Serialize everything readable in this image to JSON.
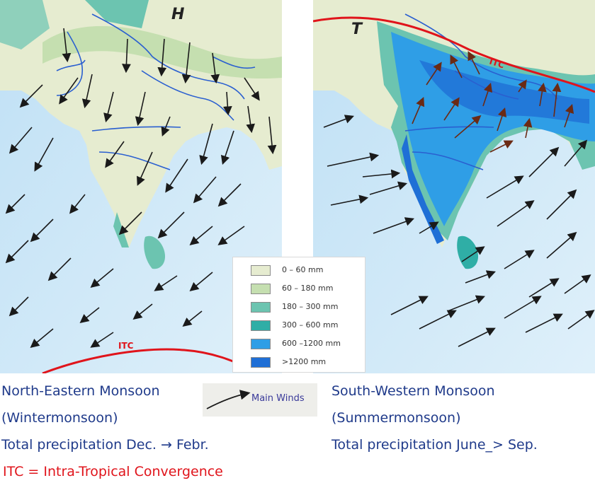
{
  "maps": {
    "winter": {
      "pressure_label": "H",
      "itc_label": "ITC"
    },
    "summer": {
      "pressure_label": "T",
      "itc_label": "ITC"
    }
  },
  "legend": {
    "title": "",
    "classes": [
      {
        "label": "0 –   60 mm",
        "color": "#e6ecd0"
      },
      {
        "label": "60 – 180 mm",
        "color": "#c5dfb0"
      },
      {
        "label": "180 – 300 mm",
        "color": "#6cc4b0"
      },
      {
        "label": "300 – 600 mm",
        "color": "#2faea6"
      },
      {
        "label": "600 –1200 mm",
        "color": "#2f9ee6"
      },
      {
        "label": ">1200 mm",
        "color": "#1f6fd6"
      }
    ]
  },
  "key": {
    "label": "Main Winds"
  },
  "captions": {
    "winter": {
      "line1": "North-Eastern Monsoon",
      "line2": "(Wintermonsoon)",
      "line3": "Total precipitation Dec. → Febr."
    },
    "summer": {
      "line1": "South-Western Monsoon",
      "line2": "(Summermonsoon)",
      "line3": "Total precipitation June_> Sep."
    },
    "itc_definition": "ITC = Intra-Tropical Convergence"
  },
  "colors": {
    "sea": "#cfe6f5",
    "land_dry": "#e6ecd0",
    "caption_text": "#1f3a8a",
    "itc_line": "#e0141b",
    "river": "#2a5fd0",
    "wind_arrow": "#1a1a1a",
    "summer_arrow": "#6b2a14"
  },
  "icons": {
    "wind": "arrow-curve-icon"
  }
}
